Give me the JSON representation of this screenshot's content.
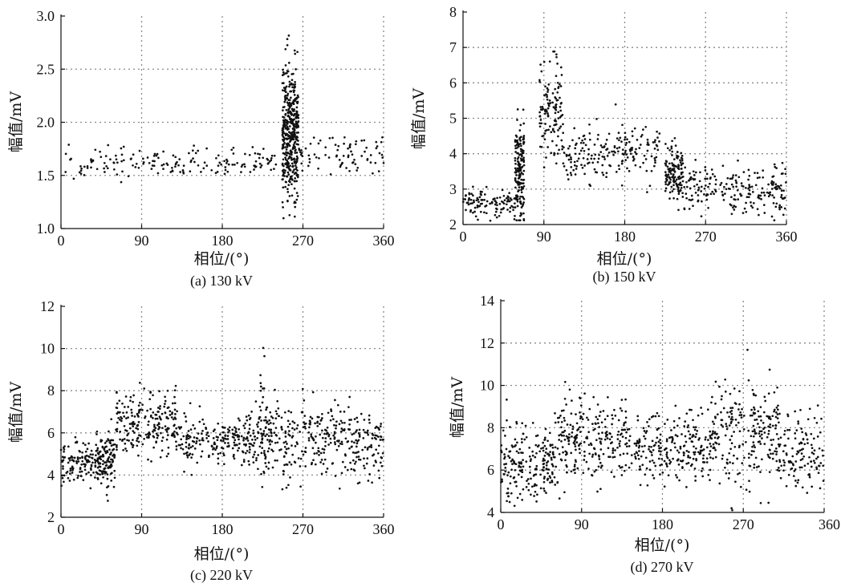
{
  "chart_data": [
    {
      "type": "scatter",
      "caption": "(a) 130 kV",
      "xlabel": "相位/(°)",
      "ylabel": "幅值/mV",
      "xlim": [
        0,
        360
      ],
      "ylim": [
        1.0,
        3.0
      ],
      "xticks": [
        "0",
        "90",
        "180",
        "270",
        "360"
      ],
      "yticks": [
        "1.0",
        "1.5",
        "2.0",
        "2.5",
        "3.0"
      ],
      "xtick_values": [
        0,
        90,
        180,
        270,
        360
      ],
      "ytick_values": [
        1.0,
        1.5,
        2.0,
        2.5,
        3.0
      ],
      "grid": true,
      "clusters": [
        {
          "x": [
            0,
            240
          ],
          "y_center": 1.62,
          "y_spread": 0.07,
          "count": 170
        },
        {
          "x": [
            247,
            265
          ],
          "y_center": 1.85,
          "y_spread": 0.3,
          "count": 420
        },
        {
          "x": [
            250,
            262
          ],
          "y_center": 2.3,
          "y_spread": 0.25,
          "count": 25
        },
        {
          "x": [
            265,
            360
          ],
          "y_center": 1.7,
          "y_spread": 0.1,
          "count": 80
        }
      ]
    },
    {
      "type": "scatter",
      "caption": "(b) 150 kV",
      "xlabel": "相位/(°)",
      "ylabel": "幅值/mV",
      "xlim": [
        0,
        360
      ],
      "ylim": [
        2,
        8
      ],
      "xticks": [
        "0",
        "90",
        "180",
        "270",
        "360"
      ],
      "yticks": [
        "2",
        "3",
        "4",
        "5",
        "6",
        "7",
        "8"
      ],
      "xtick_values": [
        0,
        90,
        180,
        270,
        360
      ],
      "ytick_values": [
        2,
        3,
        4,
        5,
        6,
        7,
        8
      ],
      "grid": true,
      "clusters": [
        {
          "x": [
            0,
            58
          ],
          "y_center": 2.6,
          "y_spread": 0.2,
          "count": 110
        },
        {
          "x": [
            58,
            68
          ],
          "y_center": 3.5,
          "y_spread": 0.7,
          "count": 170
        },
        {
          "x": [
            85,
            110
          ],
          "y_center": 5.1,
          "y_spread": 0.7,
          "count": 120
        },
        {
          "x": [
            110,
            220
          ],
          "y_center": 4.0,
          "y_spread": 0.4,
          "count": 200
        },
        {
          "x": [
            225,
            245
          ],
          "y_center": 3.5,
          "y_spread": 0.35,
          "count": 140
        },
        {
          "x": [
            245,
            360
          ],
          "y_center": 3.0,
          "y_spread": 0.35,
          "count": 220
        }
      ]
    },
    {
      "type": "scatter",
      "caption": "(c) 220 kV",
      "xlabel": "相位/(°)",
      "ylabel": "幅值/mV",
      "xlim": [
        0,
        360
      ],
      "ylim": [
        2,
        12
      ],
      "xticks": [
        "0",
        "90",
        "180",
        "270",
        "360"
      ],
      "yticks": [
        "2",
        "4",
        "6",
        "8",
        "10",
        "12"
      ],
      "xtick_values": [
        0,
        90,
        180,
        270,
        360
      ],
      "ytick_values": [
        2,
        4,
        6,
        8,
        10,
        12
      ],
      "grid": true,
      "clusters": [
        {
          "x": [
            0,
            40
          ],
          "y_center": 4.6,
          "y_spread": 0.5,
          "count": 120
        },
        {
          "x": [
            40,
            60
          ],
          "y_center": 4.7,
          "y_spread": 0.6,
          "count": 130
        },
        {
          "x": [
            60,
            130
          ],
          "y_center": 6.5,
          "y_spread": 0.8,
          "count": 220
        },
        {
          "x": [
            130,
            220
          ],
          "y_center": 5.6,
          "y_spread": 0.6,
          "count": 230
        },
        {
          "x": [
            220,
            235
          ],
          "y_center": 6.2,
          "y_spread": 1.1,
          "count": 80
        },
        {
          "x": [
            235,
            360
          ],
          "y_center": 5.7,
          "y_spread": 0.9,
          "count": 330
        }
      ]
    },
    {
      "type": "scatter",
      "caption": "(d) 270 kV",
      "xlabel": "相位/(°)",
      "ylabel": "幅值/mV",
      "xlim": [
        0,
        360
      ],
      "ylim": [
        4,
        14
      ],
      "xticks": [
        "0",
        "90",
        "180",
        "270",
        "360"
      ],
      "yticks": [
        "4",
        "6",
        "8",
        "10",
        "12",
        "14"
      ],
      "xtick_values": [
        0,
        90,
        180,
        270,
        360
      ],
      "ytick_values": [
        4,
        6,
        8,
        10,
        12,
        14
      ],
      "grid": true,
      "clusters": [
        {
          "x": [
            0,
            60
          ],
          "y_center": 6.3,
          "y_spread": 0.9,
          "count": 200
        },
        {
          "x": [
            60,
            140
          ],
          "y_center": 7.4,
          "y_spread": 1.0,
          "count": 240
        },
        {
          "x": [
            140,
            230
          ],
          "y_center": 7.1,
          "y_spread": 0.8,
          "count": 230
        },
        {
          "x": [
            230,
            310
          ],
          "y_center": 7.8,
          "y_spread": 1.2,
          "count": 250
        },
        {
          "x": [
            310,
            360
          ],
          "y_center": 7.0,
          "y_spread": 1.0,
          "count": 120
        }
      ]
    }
  ]
}
